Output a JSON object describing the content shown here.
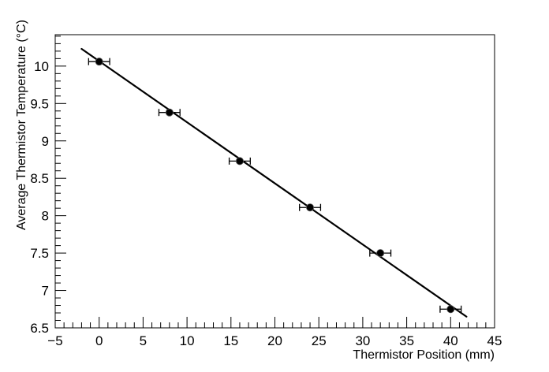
{
  "chart_data": {
    "type": "scatter",
    "title": "",
    "xlabel": "Thermistor Position (mm)",
    "ylabel": "Average Thermistor Temperature (°C)",
    "xlim": [
      -5,
      45
    ],
    "ylim": [
      6.5,
      10.42
    ],
    "x_major_step": 5,
    "x_minor_step": 1,
    "y_major_step": 0.5,
    "y_minor_step": 0.1,
    "x_tick_labels": [
      "−5",
      "0",
      "5",
      "10",
      "15",
      "20",
      "25",
      "30",
      "35",
      "40",
      "45"
    ],
    "y_tick_labels": [
      "6.5",
      "7",
      "7.5",
      "8",
      "8.5",
      "9",
      "9.5",
      "10"
    ],
    "grid": false,
    "legend": false,
    "background_color": "#ffffff",
    "axis_color": "#000000",
    "marker_color": "#000000",
    "fit_line_color": "#000000",
    "points": [
      {
        "x": 0,
        "y": 10.06,
        "xerr": 1.2
      },
      {
        "x": 8,
        "y": 9.38,
        "xerr": 1.2
      },
      {
        "x": 16,
        "y": 8.73,
        "xerr": 1.2
      },
      {
        "x": 24,
        "y": 8.11,
        "xerr": 1.2
      },
      {
        "x": 32,
        "y": 7.5,
        "xerr": 1.2
      },
      {
        "x": 40,
        "y": 6.75,
        "xerr": 1.2
      }
    ],
    "fit_line": {
      "x1": -2.0,
      "y1": 10.23,
      "x2": 41.8,
      "y2": 6.65
    }
  }
}
